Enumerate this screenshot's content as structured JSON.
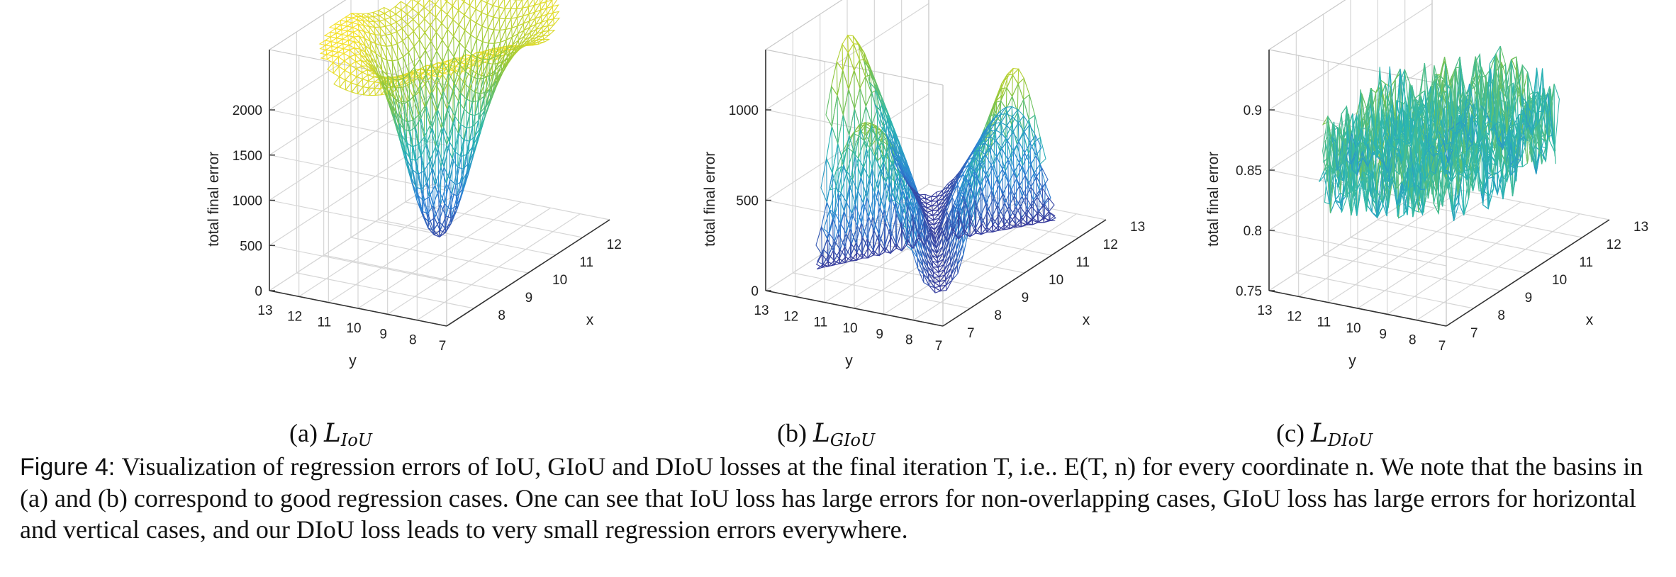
{
  "chart_data": [
    {
      "type": "surface-3d",
      "id": "iou",
      "sublabel": "(a) ",
      "sublabel_math": "L",
      "sublabel_sub": "IoU",
      "zlabel": "total final error",
      "xlabel": "x",
      "ylabel": "y",
      "z_ticks": [
        "0",
        "500",
        "1000",
        "1500",
        "2000"
      ],
      "y_ticks": [
        "13",
        "12",
        "11",
        "10",
        "9",
        "8",
        "7"
      ],
      "x_ticks": [
        "8",
        "9",
        "10",
        "11",
        "12"
      ],
      "zlim": [
        0,
        2000
      ],
      "xlim": [
        7,
        13
      ],
      "ylim": [
        7,
        13
      ],
      "surface": "basin: low error near center (good regression), high error (~2000) for non-overlapping outer region"
    },
    {
      "type": "surface-3d",
      "id": "giou",
      "sublabel": "(b) ",
      "sublabel_math": "L",
      "sublabel_sub": "GIoU",
      "zlabel": "total final error",
      "xlabel": "x",
      "ylabel": "y",
      "z_ticks": [
        "0",
        "500",
        "1000"
      ],
      "y_ticks": [
        "13",
        "12",
        "11",
        "10",
        "9",
        "8",
        "7"
      ],
      "x_ticks": [
        "7",
        "8",
        "9",
        "10",
        "11",
        "12",
        "13"
      ],
      "zlim": [
        0,
        1100
      ],
      "xlim": [
        7,
        13
      ],
      "ylim": [
        7,
        13
      ],
      "surface": "saddle: large errors along horizontal and vertical directions, basins elsewhere"
    },
    {
      "type": "surface-3d",
      "id": "diou",
      "sublabel": "(c) ",
      "sublabel_math": "L",
      "sublabel_sub": "DIoU",
      "zlabel": "total final error",
      "xlabel": "x",
      "ylabel": "y",
      "z_ticks": [
        "0.75",
        "0.8",
        "0.85",
        "0.9"
      ],
      "y_ticks": [
        "13",
        "12",
        "11",
        "10",
        "9",
        "8",
        "7"
      ],
      "x_ticks": [
        "7",
        "8",
        "9",
        "10",
        "11",
        "12",
        "13"
      ],
      "zlim": [
        0.73,
        0.92
      ],
      "xlim": [
        7,
        13
      ],
      "ylim": [
        7,
        13
      ],
      "surface": "noisy flat disc: very small errors everywhere"
    }
  ],
  "caption": {
    "lead": "Figure 4: ",
    "text": "Visualization of regression errors of IoU, GIoU and DIoU losses at the final iteration T, i.e.. E(T, n) for every coordinate n. We note that the basins in (a) and (b) correspond to good regression cases. One can see that IoU loss has large errors for non-overlapping cases, GIoU loss has large errors for horizontal and vertical cases, and our DIoU loss leads to very small regression errors everywhere."
  },
  "colors": {
    "low": "#3e2a8c",
    "mid_low": "#2c82d6",
    "mid": "#2ab7b1",
    "mid_high": "#8cc63e",
    "high": "#f5e12a",
    "grid": "#d6d6d6",
    "axis": "#333333"
  }
}
